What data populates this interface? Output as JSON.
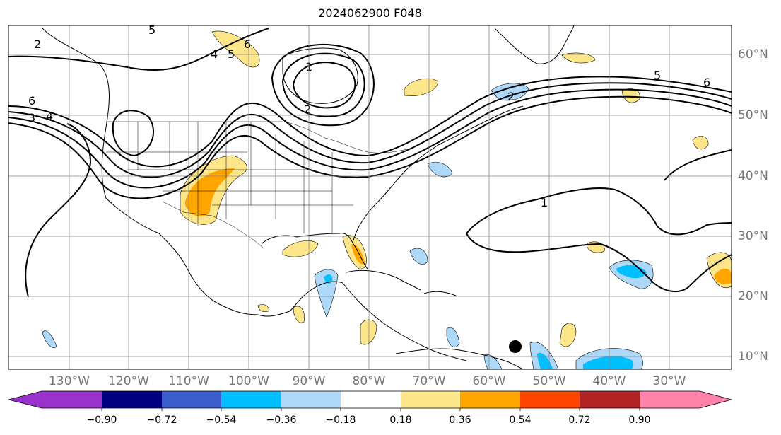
{
  "title": "2024062900 F048",
  "map": {
    "longitude_labels": [
      "130°W",
      "120°W",
      "110°W",
      "100°W",
      "90°W",
      "80°W",
      "70°W",
      "60°W",
      "50°W",
      "40°W",
      "30°W"
    ],
    "latitude_labels": [
      "60°N",
      "50°N",
      "40°N",
      "30°N",
      "20°N",
      "10°N"
    ],
    "contour_labels": [
      "2",
      "5",
      "6",
      "4",
      "5",
      "4",
      "6",
      "3",
      "1",
      "2",
      "5",
      "6",
      "1",
      "2"
    ],
    "marker": "black-dot",
    "shading_colors": {
      "neg_weak": "#add8f7",
      "neg_moderate": "#00bfff",
      "pos_weak": "#fde68a",
      "pos_moderate": "#ffa500"
    }
  },
  "colorbar": {
    "labels": [
      "−0.90",
      "−0.72",
      "−0.54",
      "−0.36",
      "−0.18",
      "0.18",
      "0.36",
      "0.54",
      "0.72",
      "0.90"
    ],
    "colors": [
      "#9932cc",
      "#000080",
      "#3a5fcd",
      "#00bfff",
      "#add8f7",
      "#ffffff",
      "#fde68a",
      "#ffa500",
      "#ff4500",
      "#b22222",
      "#ff82ab"
    ]
  }
}
